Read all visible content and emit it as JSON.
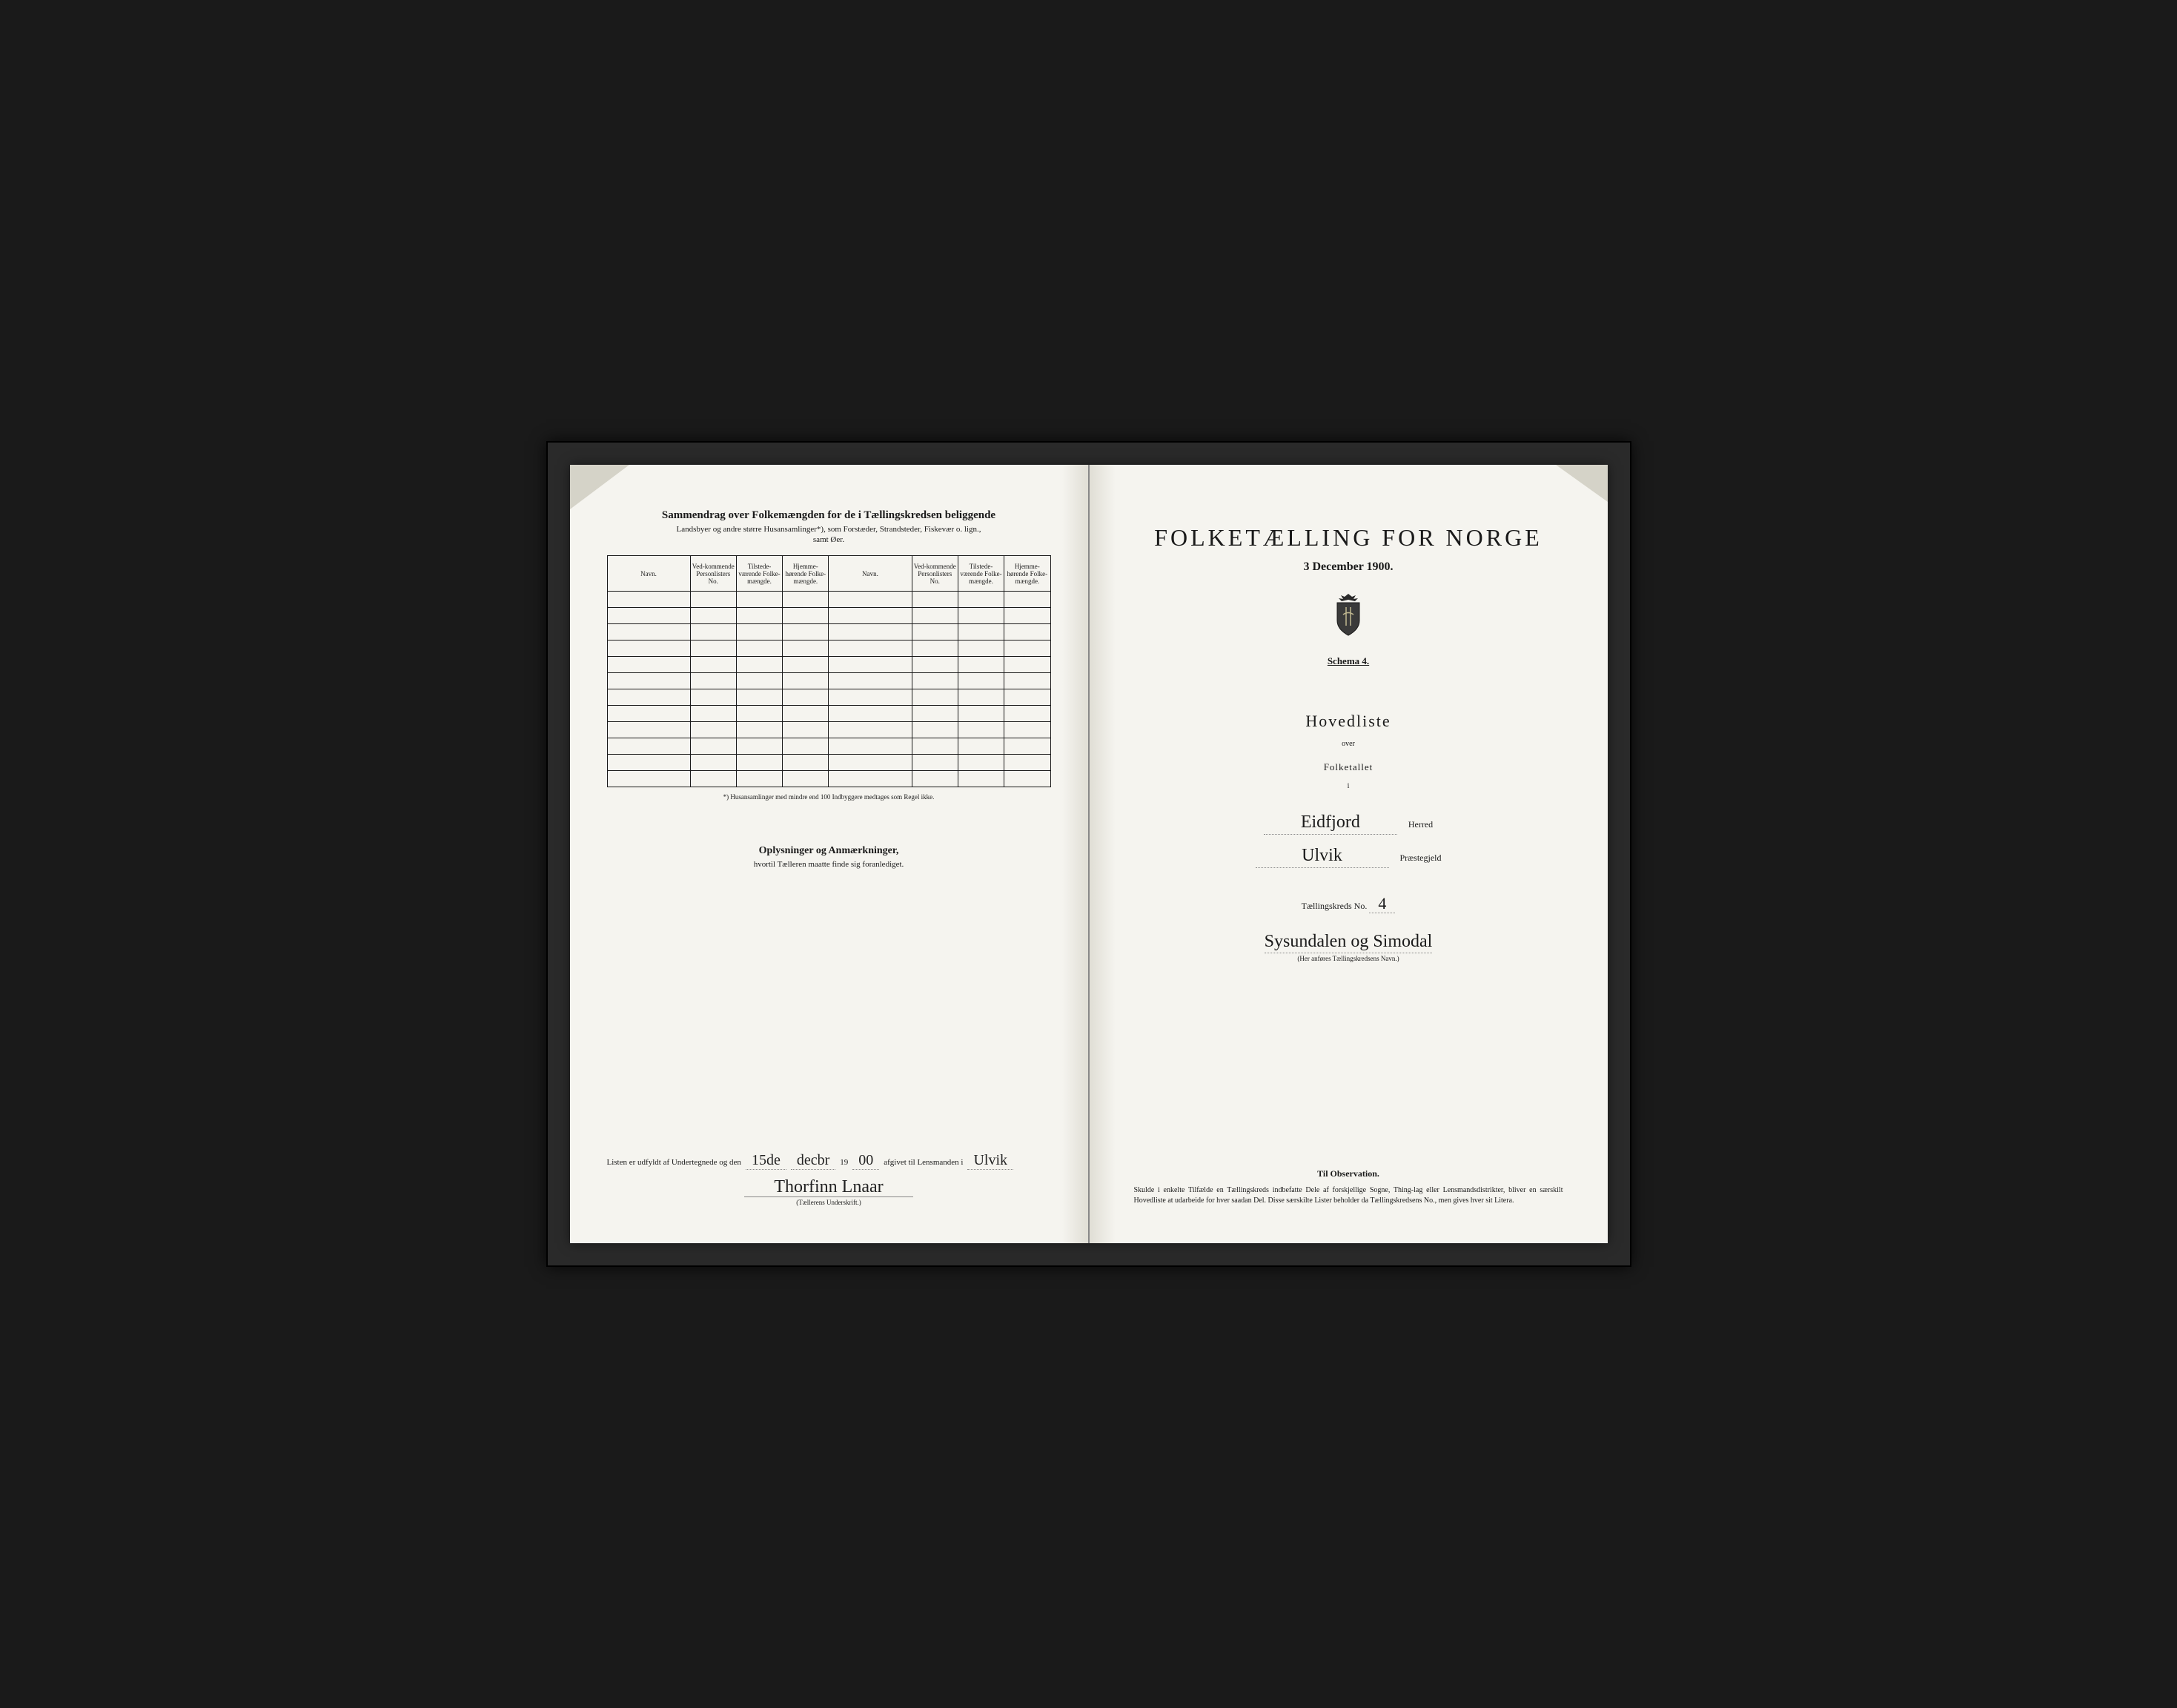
{
  "colors": {
    "page_bg": "#f5f4ef",
    "frame_bg": "#2a2a2a",
    "outer_bg": "#1a1a1a",
    "ink": "#1a1a1a",
    "dogear": "#d5d3c8",
    "rule": "#888888"
  },
  "left_page": {
    "title": "Sammendrag over Folkemængden for de i Tællingskredsen beliggende",
    "subtitle_line1": "Landsbyer og andre større Husansamlinger*), som Forstæder, Strandsteder, Fiskevær o. lign.,",
    "subtitle_line2": "samt Øer.",
    "table": {
      "columns": [
        "Navn.",
        "Ved-kommende Personlisters No.",
        "Tilstede-værende Folke-mængde.",
        "Hjemme-hørende Folke-mængde.",
        "Navn.",
        "Ved-kommende Personlisters No.",
        "Tilstede-værende Folke-mængde.",
        "Hjemme-hørende Folke-mængde."
      ],
      "row_count": 12
    },
    "footnote": "*) Husansamlinger med mindre end 100 Indbyggere medtages som Regel ikke.",
    "oplysninger_title": "Oplysninger og Anmærkninger,",
    "oplysninger_sub": "hvortil Tælleren maatte finde sig foranlediget.",
    "signature": {
      "prefix": "Listen er udfyldt af Undertegnede og den",
      "date_day": "15de",
      "date_month": "decbr",
      "year_prefix": "19",
      "year_suffix": "00",
      "middle": "afgivet til Lensmanden i",
      "lensmand": "Ulvik",
      "name": "Thorfinn Lnaar",
      "caption": "(Tællerens Underskrift.)"
    }
  },
  "right_page": {
    "title": "FOLKETÆLLING FOR NORGE",
    "date": "3 December 1900.",
    "schema": "Schema 4.",
    "hovedliste": "Hovedliste",
    "over": "over",
    "folketallet": "Folketallet",
    "i": "i",
    "herred_value": "Eidfjord",
    "herred_label": "Herred",
    "praestegjeld_value": "Ulvik",
    "praestegjeld_label": "Præstegjeld",
    "kreds_label": "Tællingskreds No.",
    "kreds_no": "4",
    "kreds_navn": "Sysundalen og Simodal",
    "kreds_caption": "(Her anføres Tællingskredsens Navn.)",
    "observation_title": "Til Observation.",
    "observation_text": "Skulde i enkelte Tilfælde en Tællingskreds indbefatte Dele af forskjellige Sogne, Thing-lag eller Lensmandsdistrikter, bliver en særskilt Hovedliste at udarbeide for hver saadan Del. Disse særskilte Lister beholder da Tællingskredsens No., men gives hver sit Litera."
  }
}
